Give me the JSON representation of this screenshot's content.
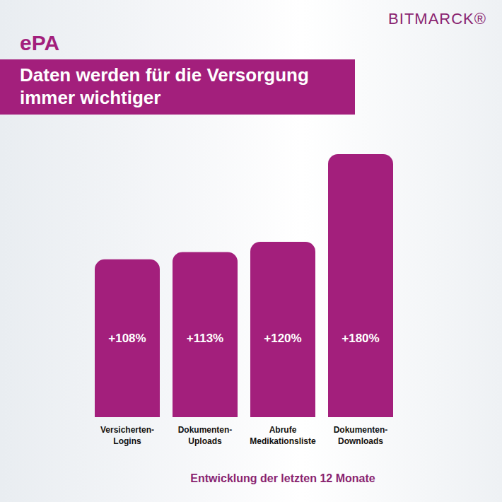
{
  "chart_data": {
    "type": "bar",
    "title": "ePA",
    "subtitle": "Daten werden für die Versorgung immer wichtiger",
    "annotations": [
      "BITMARCK®"
    ],
    "x_label": "Entwicklung der letzten 12 Monate",
    "categories": [
      "Versicherten-Logins",
      "Dokumenten-Uploads",
      "Abrufe Medikationsliste",
      "Dokumenten-Downloads"
    ],
    "values": [
      108,
      113,
      120,
      180
    ],
    "value_labels": [
      "+108%",
      "+113%",
      "+120%",
      "+180%"
    ],
    "color": "#a31f7c",
    "ylim": [
      0,
      180
    ],
    "data_labels": true,
    "tick_labels": "x",
    "grid": false
  }
}
